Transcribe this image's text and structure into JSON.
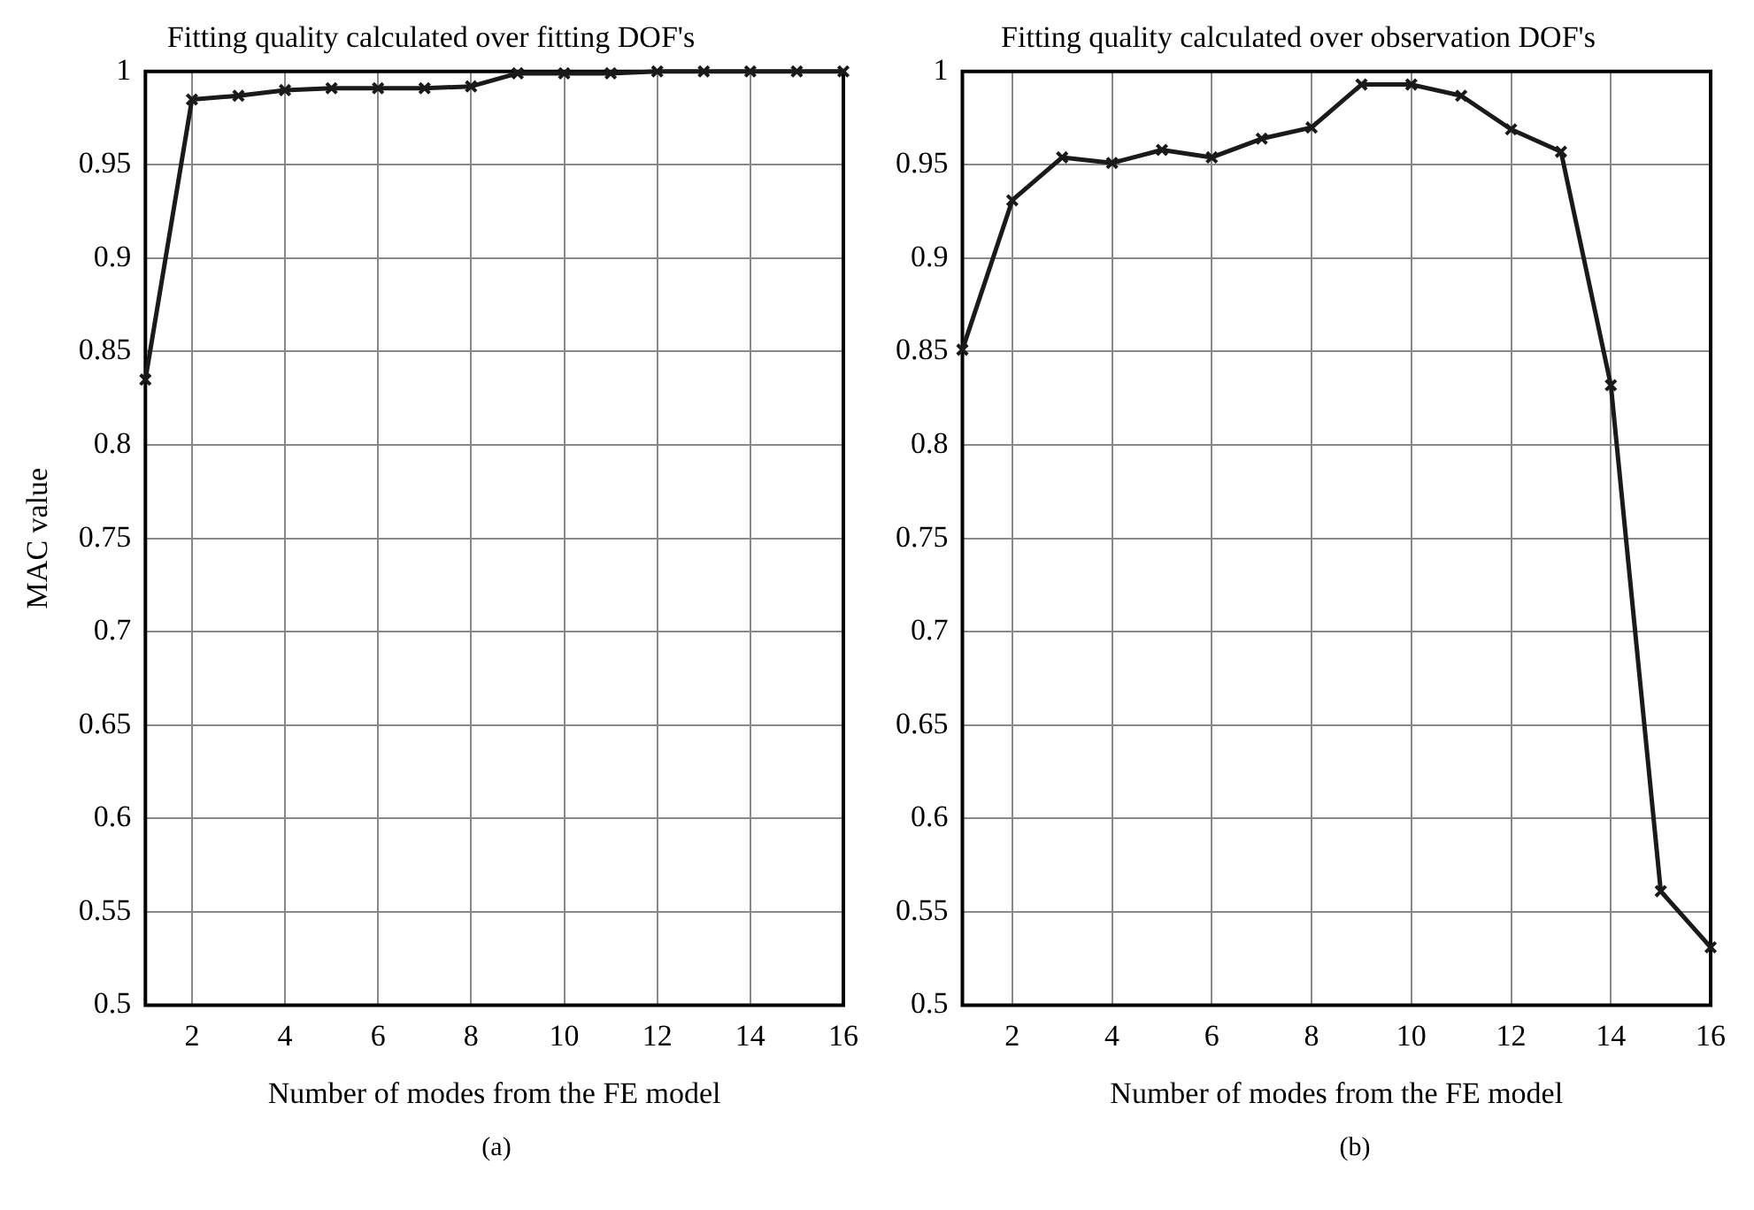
{
  "chart_data": [
    {
      "type": "line",
      "title": "Fitting quality calculated over fitting DOF's",
      "xlabel": "Number of modes from the FE model",
      "ylabel": "MAC value",
      "x": [
        1,
        2,
        3,
        4,
        5,
        6,
        7,
        8,
        9,
        10,
        11,
        12,
        13,
        14,
        15,
        16
      ],
      "series": [
        {
          "color": "#1a1a1a",
          "values": [
            0.835,
            0.985,
            0.987,
            0.99,
            0.991,
            0.991,
            0.991,
            0.992,
            0.999,
            0.999,
            0.999,
            1.0,
            1.0,
            1.0,
            1.0,
            1.0
          ]
        }
      ],
      "xlim": [
        1,
        16
      ],
      "xticks": [
        2,
        4,
        6,
        8,
        10,
        12,
        14,
        16
      ],
      "ylim": [
        0.5,
        1
      ],
      "yticks": [
        0.5,
        0.55,
        0.6,
        0.65,
        0.7,
        0.75,
        0.8,
        0.85,
        0.9,
        0.95,
        1
      ],
      "grid": true,
      "marker": "cross",
      "line_style": "solid",
      "legend": false,
      "annotations": [
        "(a)"
      ]
    },
    {
      "type": "line",
      "title": "Fitting quality calculated over observation DOF's",
      "xlabel": "Number of modes from the FE model",
      "x": [
        1,
        2,
        3,
        4,
        5,
        6,
        7,
        8,
        9,
        10,
        11,
        12,
        13,
        14,
        15,
        16
      ],
      "series": [
        {
          "color": "#1a1a1a",
          "values": [
            0.851,
            0.931,
            0.954,
            0.951,
            0.958,
            0.954,
            0.964,
            0.97,
            0.993,
            0.993,
            0.987,
            0.969,
            0.957,
            0.832,
            0.561,
            0.531
          ]
        }
      ],
      "xlim": [
        1,
        16
      ],
      "xticks": [
        2,
        4,
        6,
        8,
        10,
        12,
        14,
        16
      ],
      "ylim": [
        0.5,
        1
      ],
      "yticks": [
        0.5,
        0.55,
        0.6,
        0.65,
        0.7,
        0.75,
        0.8,
        0.85,
        0.9,
        0.95,
        1
      ],
      "grid": true,
      "marker": "cross",
      "line_style": "solid",
      "legend": false,
      "annotations": [
        "(b)"
      ]
    }
  ]
}
